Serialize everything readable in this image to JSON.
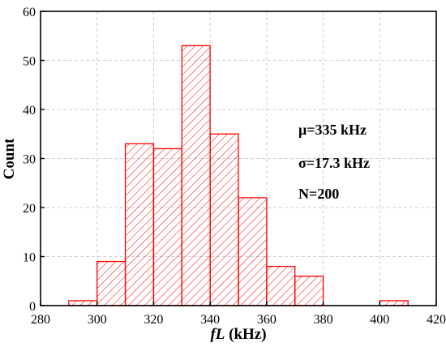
{
  "chart_data": {
    "type": "bar",
    "title": "",
    "xlabel_italic": "fL",
    "xlabel_rest": " (kHz)",
    "ylabel": "Count",
    "xlim": [
      280,
      420
    ],
    "ylim": [
      0,
      60
    ],
    "xticks": [
      280,
      300,
      320,
      340,
      360,
      380,
      400,
      420
    ],
    "yticks": [
      0,
      10,
      20,
      30,
      40,
      50,
      60
    ],
    "grid": true,
    "bin_width": 10,
    "bins": [
      {
        "start": 290,
        "end": 300,
        "count": 1
      },
      {
        "start": 300,
        "end": 310,
        "count": 9
      },
      {
        "start": 310,
        "end": 320,
        "count": 33
      },
      {
        "start": 320,
        "end": 330,
        "count": 32
      },
      {
        "start": 330,
        "end": 340,
        "count": 53
      },
      {
        "start": 340,
        "end": 350,
        "count": 35
      },
      {
        "start": 350,
        "end": 360,
        "count": 22
      },
      {
        "start": 360,
        "end": 370,
        "count": 8
      },
      {
        "start": 370,
        "end": 380,
        "count": 6
      },
      {
        "start": 400,
        "end": 410,
        "count": 1
      }
    ],
    "bar_color": "#ff0000",
    "annotations": [
      "μ=335 kHz",
      "σ=17.3 kHz",
      "N=200"
    ]
  }
}
